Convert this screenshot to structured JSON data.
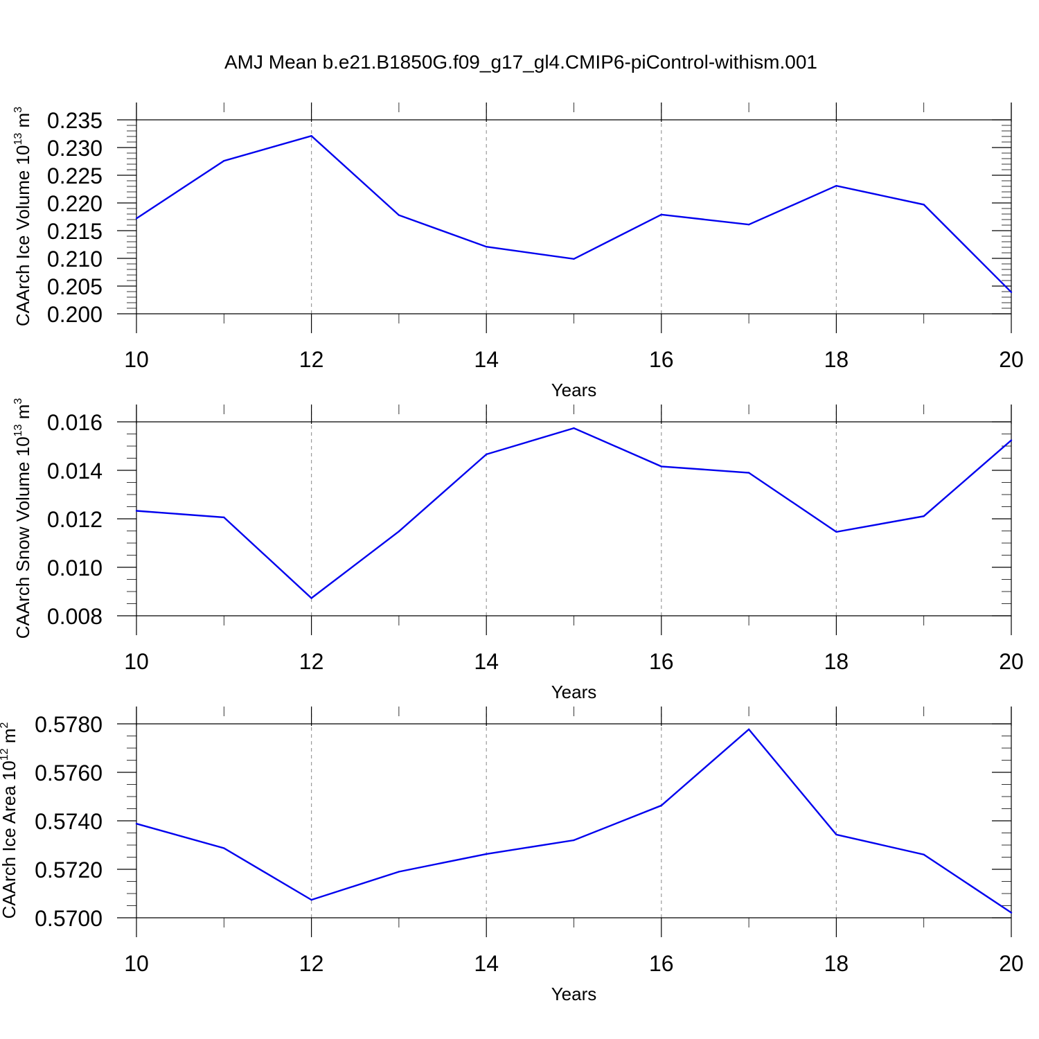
{
  "title": "AMJ Mean b.e21.B1850G.f09_g17_gl4.CMIP6-piControl-withism.001",
  "colors": {
    "line": "#0000ee",
    "grid": "#9a9a9a",
    "axis": "#000000"
  },
  "chart_data": [
    {
      "type": "line",
      "xlabel": "Years",
      "ylabel_parts": [
        {
          "text": "CAArch Ice Volume 10",
          "sup": false
        },
        {
          "text": "13",
          "sup": true
        },
        {
          "text": " m",
          "sup": false
        },
        {
          "text": "3",
          "sup": true
        }
      ],
      "xlim": [
        10,
        20
      ],
      "ylim": [
        0.2,
        0.235
      ],
      "x_ticks": [
        10,
        12,
        14,
        16,
        18,
        20
      ],
      "x_tick_labels": [
        "10",
        "12",
        "14",
        "16",
        "18",
        "20"
      ],
      "y_ticks": [
        0.2,
        0.205,
        0.21,
        0.215,
        0.22,
        0.225,
        0.23,
        0.235
      ],
      "y_tick_labels": [
        "0.200",
        "0.205",
        "0.210",
        "0.215",
        "0.220",
        "0.225",
        "0.230",
        "0.235"
      ],
      "y_minor_step": 0.001,
      "grid": "x-dashed",
      "x": [
        10,
        11,
        12,
        13,
        14,
        15,
        16,
        17,
        18,
        19,
        20
      ],
      "values": [
        0.2172,
        0.2276,
        0.2321,
        0.2178,
        0.2121,
        0.2099,
        0.2179,
        0.2161,
        0.2231,
        0.2197,
        0.2039
      ]
    },
    {
      "type": "line",
      "xlabel": "Years",
      "ylabel_parts": [
        {
          "text": "CAArch Snow Volume 10",
          "sup": false
        },
        {
          "text": "13",
          "sup": true
        },
        {
          "text": " m",
          "sup": false
        },
        {
          "text": "3",
          "sup": true
        }
      ],
      "xlim": [
        10,
        20
      ],
      "ylim": [
        0.008,
        0.016
      ],
      "x_ticks": [
        10,
        12,
        14,
        16,
        18,
        20
      ],
      "x_tick_labels": [
        "10",
        "12",
        "14",
        "16",
        "18",
        "20"
      ],
      "y_ticks": [
        0.008,
        0.01,
        0.012,
        0.014,
        0.016
      ],
      "y_tick_labels": [
        "0.008",
        "0.010",
        "0.012",
        "0.014",
        "0.016"
      ],
      "y_minor_step": 0.0005,
      "grid": "x-dashed",
      "x": [
        10,
        11,
        12,
        13,
        14,
        15,
        16,
        17,
        18,
        19,
        20
      ],
      "values": [
        0.01233,
        0.01206,
        0.00873,
        0.01148,
        0.01466,
        0.01574,
        0.01416,
        0.0139,
        0.01146,
        0.01211,
        0.01524
      ]
    },
    {
      "type": "line",
      "xlabel": "Years",
      "ylabel_parts": [
        {
          "text": "CAArch Ice Area 10",
          "sup": false
        },
        {
          "text": "12",
          "sup": true
        },
        {
          "text": " m",
          "sup": false
        },
        {
          "text": "2",
          "sup": true
        }
      ],
      "xlim": [
        10,
        20
      ],
      "ylim": [
        0.57,
        0.578
      ],
      "x_ticks": [
        10,
        12,
        14,
        16,
        18,
        20
      ],
      "x_tick_labels": [
        "10",
        "12",
        "14",
        "16",
        "18",
        "20"
      ],
      "y_ticks": [
        0.57,
        0.572,
        0.574,
        0.576,
        0.578
      ],
      "y_tick_labels": [
        "0.5700",
        "0.5720",
        "0.5740",
        "0.5760",
        "0.5780"
      ],
      "y_minor_step": 0.0005,
      "grid": "x-dashed",
      "x": [
        10,
        11,
        12,
        13,
        14,
        15,
        16,
        17,
        18,
        19,
        20
      ],
      "values": [
        0.57388,
        0.57287,
        0.57074,
        0.5719,
        0.57263,
        0.5732,
        0.57463,
        0.57777,
        0.57343,
        0.57261,
        0.57021
      ]
    }
  ]
}
